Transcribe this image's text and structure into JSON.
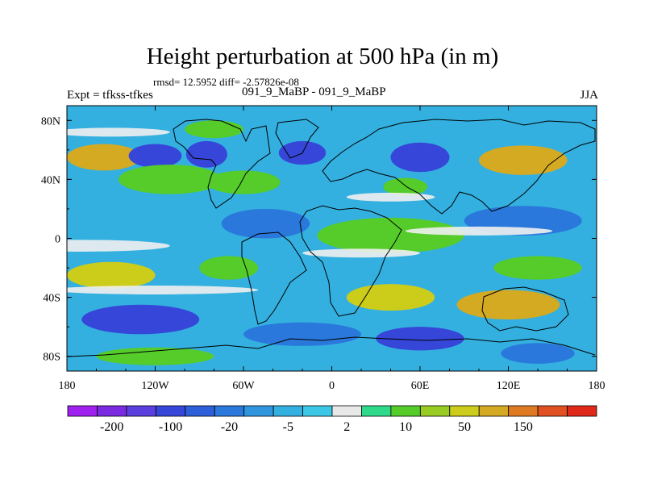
{
  "chart_data": {
    "type": "heatmap",
    "title": "Height perturbation at 500 hPa (in m)",
    "stats": "rmsd= 12.5952 diff= -2.57826e-08",
    "left_label": "Expt = tfkss-tfkes",
    "subtitle": "091_9_MaBP - 091_9_MaBP",
    "right_label": "JJA",
    "x_range": [
      -180,
      180
    ],
    "y_range": [
      -90,
      90
    ],
    "x_ticks": [
      {
        "value": -180,
        "label": "180"
      },
      {
        "value": -120,
        "label": "120W"
      },
      {
        "value": -60,
        "label": "60W"
      },
      {
        "value": 0,
        "label": "0"
      },
      {
        "value": 60,
        "label": "60E"
      },
      {
        "value": 120,
        "label": "120E"
      },
      {
        "value": 180,
        "label": "180"
      }
    ],
    "y_ticks": [
      {
        "value": 80,
        "label": "80N"
      },
      {
        "value": 40,
        "label": "40N"
      },
      {
        "value": 0,
        "label": "0"
      },
      {
        "value": -40,
        "label": "40S"
      },
      {
        "value": -80,
        "label": "80S"
      }
    ],
    "color_levels": [
      {
        "label": "",
        "color": "#a020f0"
      },
      {
        "label": "-200",
        "color": "#7a2ae0"
      },
      {
        "label": "",
        "color": "#5b3fdf"
      },
      {
        "label": "-100",
        "color": "#3646d8"
      },
      {
        "label": "",
        "color": "#2c5fd8"
      },
      {
        "label": "-20",
        "color": "#2a78dc"
      },
      {
        "label": "",
        "color": "#2f96de"
      },
      {
        "label": "-5",
        "color": "#33b0e0"
      },
      {
        "label": "",
        "color": "#3cc7e6"
      },
      {
        "label": "2",
        "color": "#e8e8e8"
      },
      {
        "label": "",
        "color": "#2ed98a"
      },
      {
        "label": "10",
        "color": "#55cc2a"
      },
      {
        "label": "",
        "color": "#99cc22"
      },
      {
        "label": "50",
        "color": "#cccc1a"
      },
      {
        "label": "",
        "color": "#d4aa22"
      },
      {
        "label": "150",
        "color": "#e07a22"
      },
      {
        "label": "",
        "color": "#e05020"
      },
      {
        "label": "",
        "color": "#e02818"
      }
    ],
    "field_blobs": [
      {
        "lon": -155,
        "lat": 55,
        "rlon": 25,
        "rlat": 9,
        "value": 100
      },
      {
        "lon": -120,
        "lat": 56,
        "rlon": 18,
        "rlat": 8,
        "value": -100
      },
      {
        "lon": -85,
        "lat": 57,
        "rlon": 14,
        "rlat": 9,
        "value": -100
      },
      {
        "lon": -20,
        "lat": 58,
        "rlon": 16,
        "rlat": 8,
        "value": -100
      },
      {
        "lon": 60,
        "lat": 55,
        "rlon": 20,
        "rlat": 10,
        "value": -100
      },
      {
        "lon": 130,
        "lat": 53,
        "rlon": 30,
        "rlat": 10,
        "value": 100
      },
      {
        "lon": -110,
        "lat": 40,
        "rlon": 35,
        "rlat": 10,
        "value": 10
      },
      {
        "lon": -60,
        "lat": 38,
        "rlon": 25,
        "rlat": 8,
        "value": 10
      },
      {
        "lon": 50,
        "lat": 35,
        "rlon": 15,
        "rlat": 6,
        "value": 10
      },
      {
        "lon": -80,
        "lat": 74,
        "rlon": 20,
        "rlat": 6,
        "value": 10
      },
      {
        "lon": 40,
        "lat": 78,
        "rlon": 40,
        "rlat": 6,
        "value": -5
      },
      {
        "lon": -160,
        "lat": 18,
        "rlon": 20,
        "rlat": 8,
        "value": -5
      },
      {
        "lon": -45,
        "lat": 10,
        "rlon": 30,
        "rlat": 10,
        "value": -20
      },
      {
        "lon": 40,
        "lat": 2,
        "rlon": 50,
        "rlat": 12,
        "value": 10
      },
      {
        "lon": 130,
        "lat": 12,
        "rlon": 40,
        "rlat": 10,
        "value": -20
      },
      {
        "lon": -150,
        "lat": -25,
        "rlon": 30,
        "rlat": 9,
        "value": 50
      },
      {
        "lon": -70,
        "lat": -20,
        "rlon": 20,
        "rlat": 8,
        "value": 10
      },
      {
        "lon": 140,
        "lat": -20,
        "rlon": 30,
        "rlat": 8,
        "value": 10
      },
      {
        "lon": 40,
        "lat": -40,
        "rlon": 30,
        "rlat": 9,
        "value": 50
      },
      {
        "lon": 120,
        "lat": -45,
        "rlon": 35,
        "rlat": 10,
        "value": 100
      },
      {
        "lon": -40,
        "lat": -42,
        "rlon": 20,
        "rlat": 8,
        "value": -5
      },
      {
        "lon": -130,
        "lat": -55,
        "rlon": 40,
        "rlat": 10,
        "value": -100
      },
      {
        "lon": -20,
        "lat": -65,
        "rlon": 40,
        "rlat": 8,
        "value": -20
      },
      {
        "lon": 60,
        "lat": -68,
        "rlon": 30,
        "rlat": 8,
        "value": -100
      },
      {
        "lon": -120,
        "lat": -80,
        "rlon": 40,
        "rlat": 6,
        "value": 10
      },
      {
        "lon": 140,
        "lat": -78,
        "rlon": 25,
        "rlat": 7,
        "value": -20
      }
    ]
  }
}
